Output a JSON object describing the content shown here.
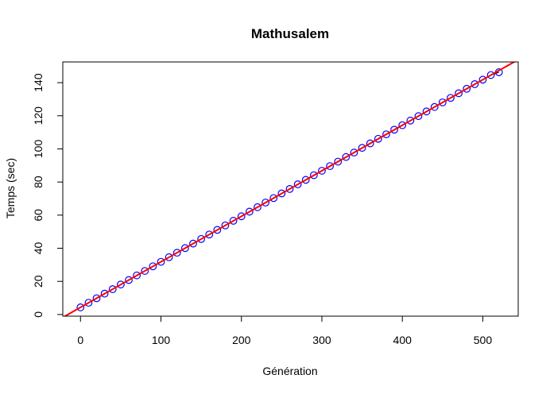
{
  "chart_data": {
    "type": "scatter",
    "title": "Mathusalem",
    "xlabel": "Génération",
    "ylabel": "Temps (sec)",
    "xlim": [
      -22,
      544
    ],
    "ylim": [
      -1,
      152.5
    ],
    "x_ticks": [
      0,
      100,
      200,
      300,
      400,
      500
    ],
    "y_ticks": [
      0,
      20,
      40,
      60,
      80,
      100,
      120,
      140
    ],
    "grid": false,
    "legend": "none",
    "points": {
      "x": [
        0,
        10,
        20,
        30,
        40,
        50,
        60,
        70,
        80,
        90,
        100,
        110,
        120,
        130,
        140,
        150,
        160,
        170,
        180,
        190,
        200,
        210,
        220,
        230,
        240,
        250,
        260,
        270,
        280,
        290,
        300,
        310,
        320,
        330,
        340,
        350,
        360,
        370,
        380,
        390,
        400,
        410,
        420,
        430,
        440,
        450,
        460,
        470,
        480,
        490,
        500,
        510,
        520
      ],
      "y": [
        4.3,
        7.1,
        9.8,
        12.6,
        15.3,
        18.1,
        20.8,
        23.6,
        26.3,
        29.1,
        31.8,
        34.6,
        37.3,
        40.1,
        42.8,
        45.6,
        48.3,
        51.1,
        53.8,
        56.6,
        59.3,
        62.1,
        64.8,
        67.6,
        70.3,
        73.1,
        75.8,
        78.6,
        81.3,
        84.1,
        86.8,
        89.6,
        92.3,
        95.1,
        97.8,
        100.6,
        103.3,
        106.1,
        108.8,
        111.6,
        114.3,
        117.1,
        119.8,
        122.6,
        125.3,
        128.1,
        130.8,
        133.6,
        136.3,
        139.1,
        141.8,
        144.6,
        146.3
      ],
      "color": "#0000ff",
      "marker": "open-circle"
    },
    "fit_line": {
      "intercept": 4.3,
      "slope": 0.275,
      "color": "#ff0000"
    },
    "data_line": {
      "color": "#000000"
    }
  }
}
